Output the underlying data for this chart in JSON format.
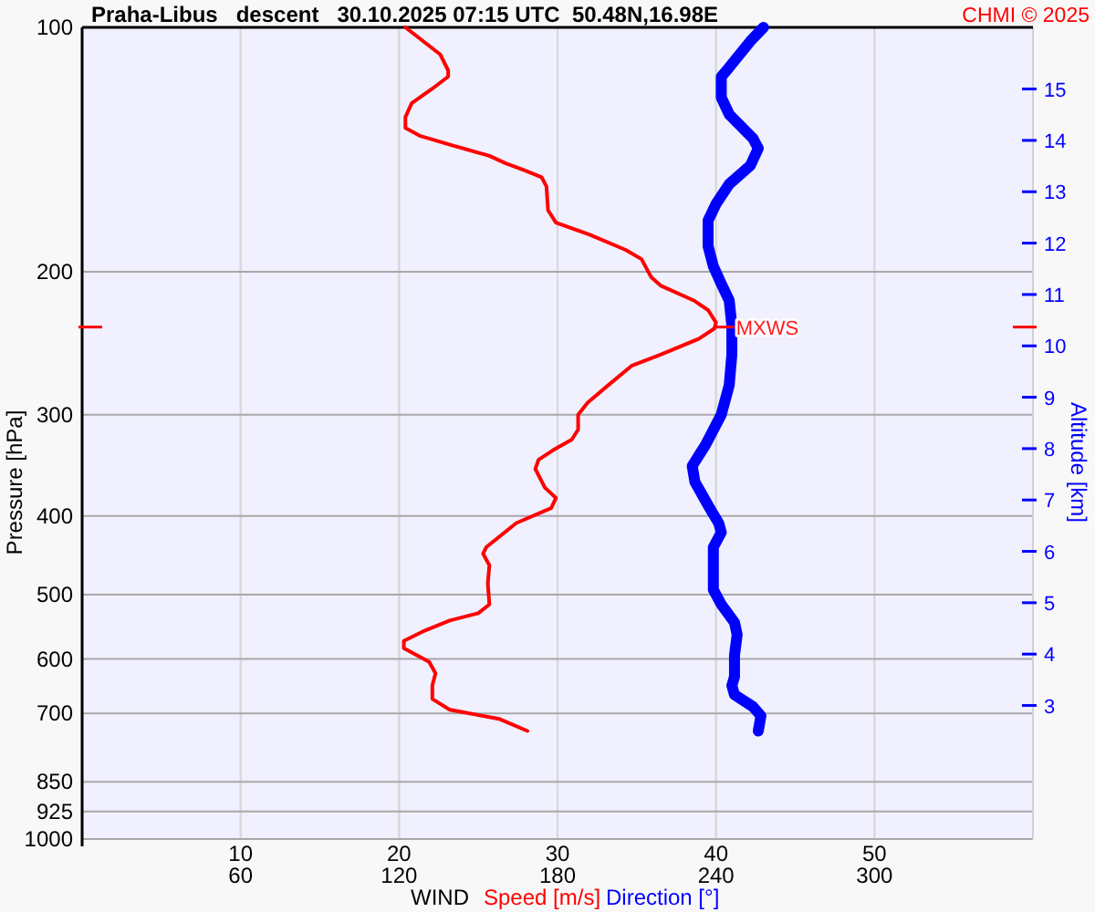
{
  "chart_data": {
    "type": "line",
    "orientation": "horizontal",
    "title": "Praha-Libus   descent   30.10.2025 07:15 UTC  50.48N,16.98E",
    "xlabel": "WIND",
    "ylabel": "Pressure [hPa]",
    "y2label": "Altitude [km]",
    "annotations": [
      "CHMI © 2025",
      {
        "text": "MXWS",
        "x": 40,
        "y": 234
      }
    ],
    "series": [
      {
        "name": "Speed [m/s]",
        "color": "#ff0000",
        "x": [
          100,
          108,
          113,
          115,
          119,
          124,
          129,
          133,
          136,
          140,
          144,
          147,
          150,
          153,
          157,
          168,
          174,
          180,
          188,
          193,
          203,
          208,
          217,
          223,
          231,
          235,
          242,
          253,
          261,
          276,
          290,
          300,
          313,
          322,
          332,
          341,
          350,
          369,
          380,
          391,
          408,
          437,
          445,
          460,
          484,
          514,
          527,
          538,
          555,
          570,
          582,
          605,
          625,
          647,
          672,
          693,
          711,
          736
        ],
        "values": [
          20.4,
          22.6,
          23.1,
          23.1,
          22.1,
          20.8,
          20.4,
          20.4,
          21.3,
          23.5,
          25.7,
          26.7,
          27.9,
          29.0,
          29.3,
          29.4,
          29.9,
          32.0,
          34.3,
          35.3,
          35.9,
          36.5,
          38.6,
          39.5,
          40.0,
          39.9,
          38.9,
          36.5,
          34.7,
          33.2,
          31.9,
          31.3,
          31.3,
          30.9,
          29.7,
          28.8,
          28.6,
          29.2,
          29.9,
          29.6,
          27.4,
          25.5,
          25.3,
          25.7,
          25.6,
          25.7,
          25.0,
          23.2,
          21.5,
          20.3,
          20.3,
          21.9,
          22.3,
          22.1,
          22.1,
          23.2,
          26.3,
          28.1
        ]
      },
      {
        "name": "Direction [°]",
        "color": "#0000ff",
        "axis": "x2",
        "x": [
          100,
          104,
          112,
          115,
          122,
          128,
          137,
          141,
          148,
          156,
          165,
          173,
          186,
          197,
          207,
          217,
          233,
          253,
          276,
          300,
          327,
          347,
          363,
          388,
          408,
          419,
          437,
          460,
          493,
          514,
          541,
          560,
          594,
          631,
          647,
          664,
          687,
          705,
          736
        ],
        "values": [
          258,
          253,
          245,
          242,
          242,
          245,
          254,
          256,
          253,
          245,
          240,
          237,
          237,
          239,
          242,
          245,
          246,
          246,
          245,
          242,
          236,
          231,
          232,
          237,
          241,
          242,
          239,
          239,
          239,
          242,
          247,
          248,
          247,
          247,
          246,
          247,
          254,
          257,
          256
        ]
      }
    ],
    "xlim": [
      0,
      60
    ],
    "xticks": [
      10,
      20,
      30,
      40,
      50
    ],
    "x2lim": [
      0,
      360
    ],
    "x2ticks": [
      60,
      120,
      180,
      240,
      300
    ],
    "ylim": [
      1000,
      100
    ],
    "yticks": [
      100,
      200,
      300,
      400,
      500,
      600,
      700,
      850,
      925,
      1000
    ],
    "log": "y",
    "y2lim": [
      0.4,
      16.2
    ],
    "y2ticks": [
      3,
      4,
      5,
      6,
      7,
      8,
      9,
      10,
      11,
      12,
      13,
      14,
      15
    ],
    "grid": true,
    "legend": "bottom",
    "line_style": "solid"
  }
}
